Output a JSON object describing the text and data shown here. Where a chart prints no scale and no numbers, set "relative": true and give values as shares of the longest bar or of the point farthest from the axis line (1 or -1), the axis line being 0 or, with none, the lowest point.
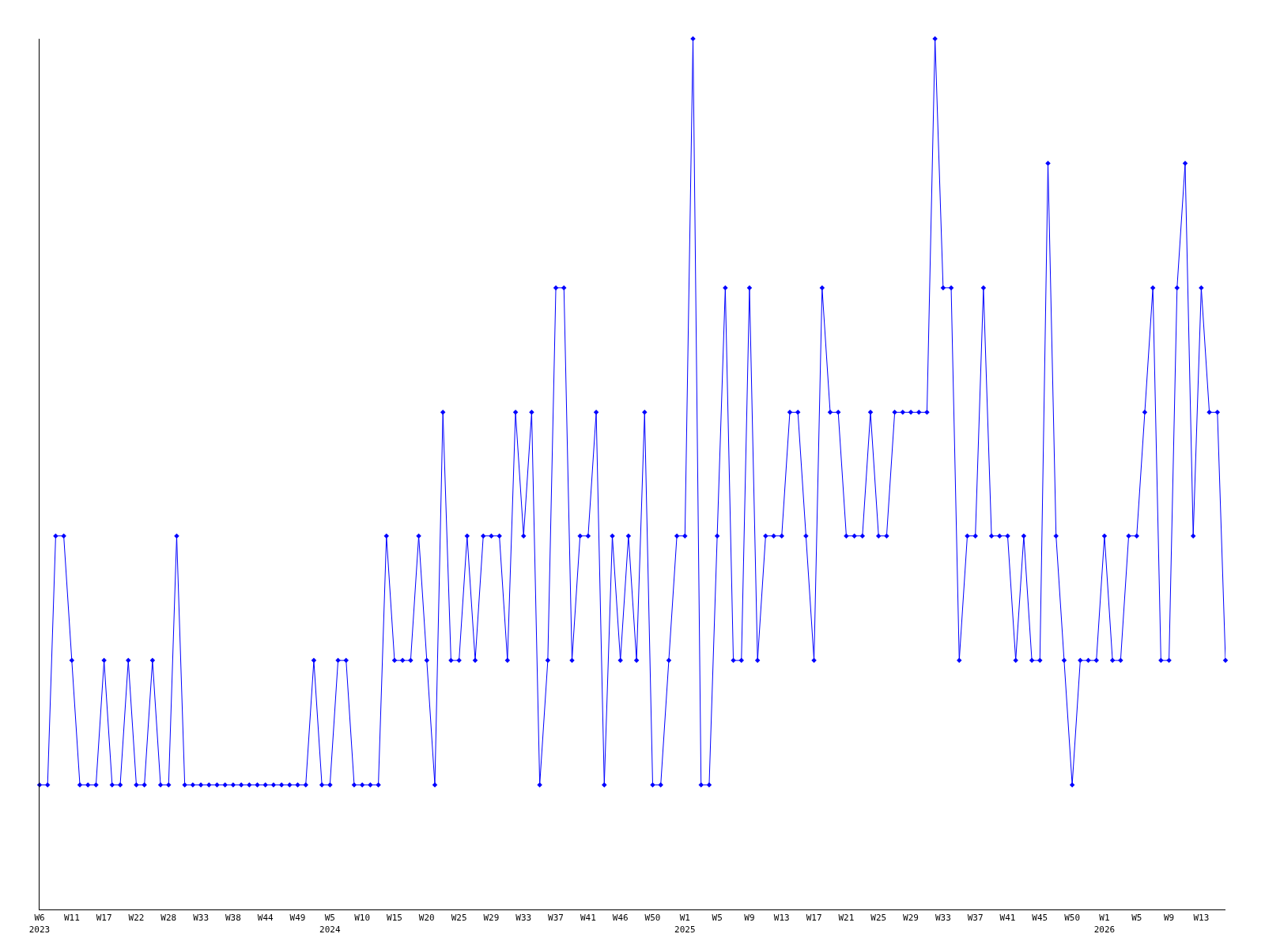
{
  "chart_data": {
    "type": "line",
    "relative": true,
    "marker": "diamond",
    "line_style": "solid",
    "legend": false,
    "categories": [
      "W6\n2023",
      null,
      null,
      null,
      "W11",
      null,
      null,
      null,
      "W17",
      null,
      null,
      null,
      "W22",
      null,
      null,
      null,
      "W28",
      null,
      null,
      null,
      "W33",
      null,
      null,
      null,
      "W38",
      null,
      null,
      null,
      "W44",
      null,
      null,
      null,
      "W49",
      null,
      null,
      null,
      "W5\n2024",
      null,
      null,
      null,
      "W10",
      null,
      null,
      null,
      "W15",
      null,
      null,
      null,
      "W20",
      null,
      null,
      null,
      "W25",
      null,
      null,
      null,
      "W29",
      null,
      null,
      null,
      "W33",
      null,
      null,
      null,
      "W37",
      null,
      null,
      null,
      "W41",
      null,
      null,
      null,
      "W46",
      null,
      null,
      null,
      "W50",
      null,
      null,
      null,
      "W1\n2025",
      null,
      null,
      null,
      "W5",
      null,
      null,
      null,
      "W9",
      null,
      null,
      null,
      "W13",
      null,
      null,
      null,
      "W17",
      null,
      null,
      null,
      "W21",
      null,
      null,
      null,
      "W25",
      null,
      null,
      null,
      "W29",
      null,
      null,
      null,
      "W33",
      null,
      null,
      null,
      "W37",
      null,
      null,
      null,
      "W41",
      null,
      null,
      null,
      "W45",
      null,
      null,
      null,
      "W50",
      null,
      null,
      null,
      "W1\n2026",
      null,
      null,
      null,
      "W5",
      null,
      null,
      null,
      "W9",
      null,
      null,
      null,
      "W13",
      null,
      null,
      null
    ],
    "series": [
      {
        "color": "#0000ff",
        "values": [
          0.143,
          0.143,
          0.429,
          0.429,
          0.286,
          0.143,
          0.143,
          0.143,
          0.286,
          0.143,
          0.143,
          0.286,
          0.143,
          0.143,
          0.286,
          0.143,
          0.143,
          0.429,
          0.143,
          0.143,
          0.143,
          0.143,
          0.143,
          0.143,
          0.143,
          0.143,
          0.143,
          0.143,
          0.143,
          0.143,
          0.143,
          0.143,
          0.143,
          0.143,
          0.286,
          0.143,
          0.143,
          0.286,
          0.286,
          0.143,
          0.143,
          0.143,
          0.143,
          0.429,
          0.286,
          0.286,
          0.286,
          0.429,
          0.286,
          0.143,
          0.571,
          0.286,
          0.286,
          0.429,
          0.286,
          0.429,
          0.429,
          0.429,
          0.286,
          0.571,
          0.429,
          0.571,
          0.143,
          0.286,
          0.714,
          0.714,
          0.286,
          0.429,
          0.429,
          0.571,
          0.143,
          0.429,
          0.286,
          0.429,
          0.286,
          0.571,
          0.143,
          0.143,
          0.286,
          0.429,
          0.429,
          1,
          0.143,
          0.143,
          0.429,
          0.714,
          0.286,
          0.286,
          0.714,
          0.286,
          0.429,
          0.429,
          0.429,
          0.571,
          0.571,
          0.429,
          0.286,
          0.714,
          0.571,
          0.571,
          0.429,
          0.429,
          0.429,
          0.571,
          0.429,
          0.429,
          0.571,
          0.571,
          0.571,
          0.571,
          0.571,
          1,
          0.714,
          0.714,
          0.286,
          0.429,
          0.429,
          0.714,
          0.429,
          0.429,
          0.429,
          0.286,
          0.429,
          0.286,
          0.286,
          0.857,
          0.429,
          0.286,
          0.143,
          0.286,
          0.286,
          0.286,
          0.429,
          0.286,
          0.286,
          0.429,
          0.429,
          0.571,
          0.714,
          0.286,
          0.286,
          0.714,
          0.857,
          0.429,
          0.714,
          0.571,
          0.571,
          0.286
        ]
      }
    ]
  }
}
